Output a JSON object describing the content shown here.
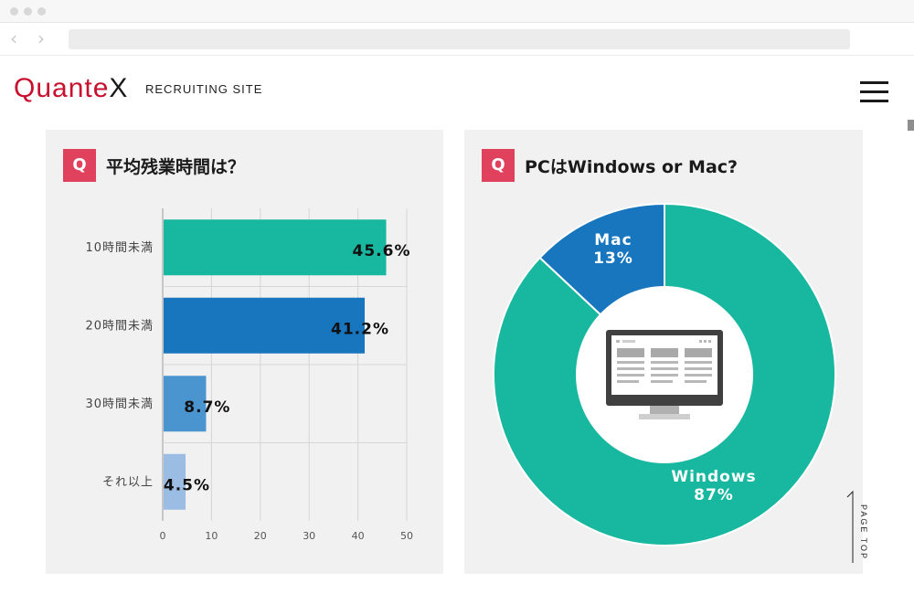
{
  "site": {
    "logo_main": "Quante",
    "logo_x": "X",
    "subtitle": "RECRUITING SITE",
    "page_top_label": "PAGE TOP"
  },
  "browser": {
    "back_icon": "chevron-left-icon",
    "forward_icon": "chevron-right-icon"
  },
  "colors": {
    "q_badge": "#e0415d",
    "teal": "#18b79f",
    "blue": "#1876bf",
    "mid_blue": "#4a94d0",
    "light_blue": "#9bbde3",
    "panel_bg": "#f1f1f1"
  },
  "panels": {
    "overtime": {
      "badge": "Q",
      "title": "平均残業時間は？"
    },
    "pc": {
      "badge": "Q",
      "title": "PCはWindows or Mac?"
    }
  },
  "chart_data": [
    {
      "type": "bar",
      "orientation": "horizontal",
      "title": "平均残業時間は？",
      "categories": [
        "10時間未満",
        "20時間未満",
        "30時間未満",
        "それ以上"
      ],
      "values": [
        45.6,
        41.2,
        8.7,
        4.5
      ],
      "data_labels": [
        "45.6%",
        "41.2%",
        "8.7%",
        "4.5%"
      ],
      "bar_colors": [
        "#18b79f",
        "#1876bf",
        "#4a94d0",
        "#9bbde3"
      ],
      "xlim": [
        0,
        50
      ],
      "xticks": [
        0,
        10,
        20,
        30,
        40,
        50
      ],
      "grid": true
    },
    {
      "type": "pie",
      "style": "donut",
      "title": "PCはWindows or Mac?",
      "slices": [
        {
          "label": "Windows",
          "value": 87,
          "value_label": "87%",
          "color": "#18b79f"
        },
        {
          "label": "Mac",
          "value": 13,
          "value_label": "13%",
          "color": "#1876bf"
        }
      ],
      "center_icon": "desktop-monitor-icon"
    }
  ]
}
